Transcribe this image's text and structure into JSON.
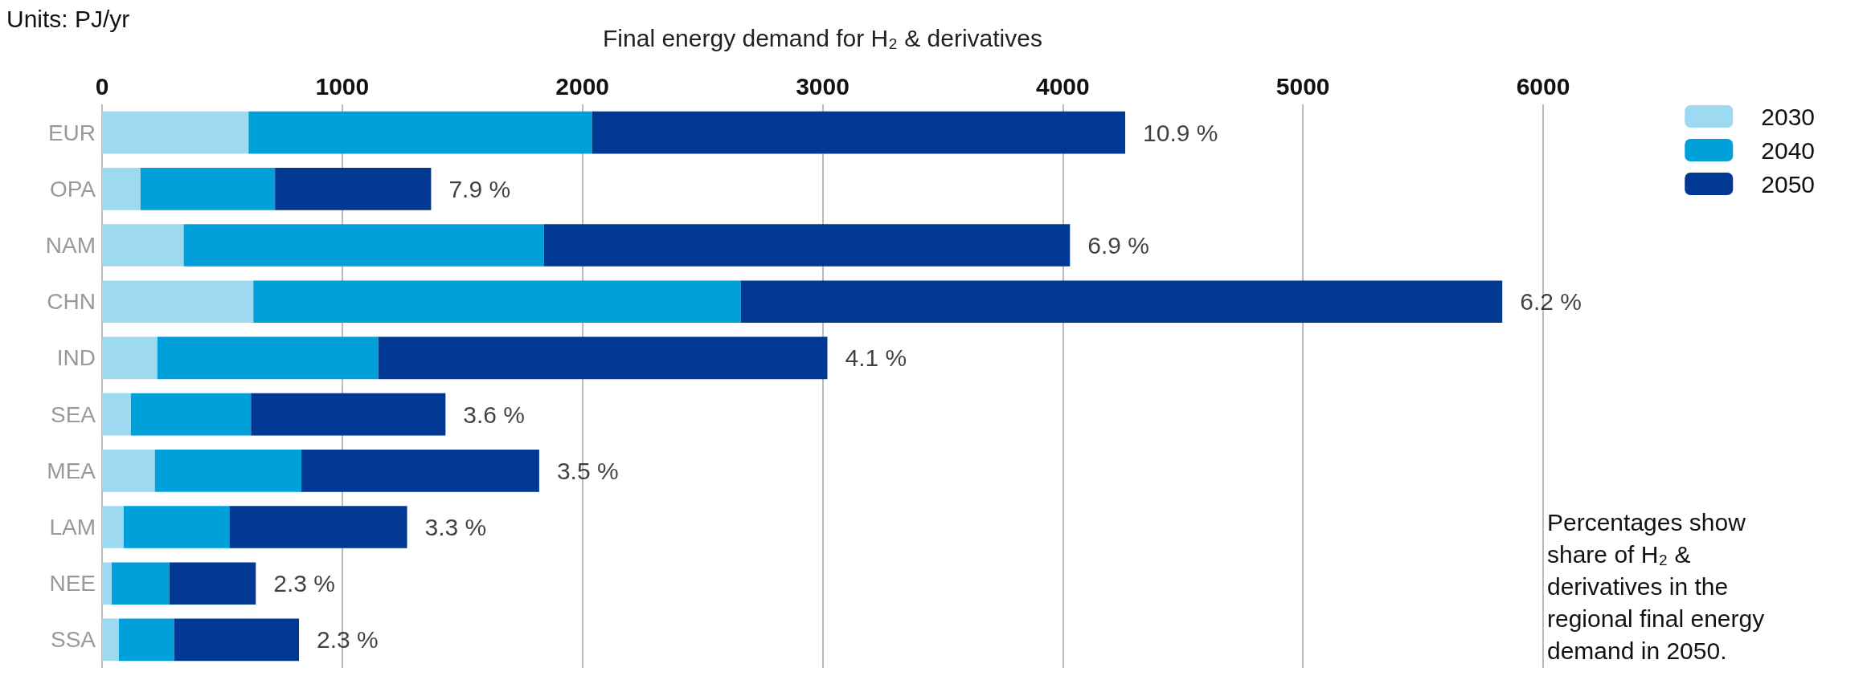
{
  "chart_data": {
    "type": "bar",
    "orientation": "horizontal",
    "stacked": true,
    "xlabel": "Final energy demand for H₂ & derivatives",
    "categories": [
      "EUR",
      "OPA",
      "NAM",
      "CHN",
      "IND",
      "SEA",
      "MEA",
      "LAM",
      "NEE",
      "SSA"
    ],
    "series": [
      {
        "name": "2030",
        "color": "#9dd9f0",
        "values": [
          610,
          160,
          340,
          630,
          230,
          120,
          220,
          90,
          40,
          70
        ]
      },
      {
        "name": "2040",
        "color": "#00a0da",
        "values": [
          1430,
          560,
          1500,
          2030,
          920,
          500,
          610,
          440,
          240,
          230
        ]
      },
      {
        "name": "2050",
        "color": "#003893",
        "values": [
          2220,
          650,
          2190,
          3170,
          1870,
          810,
          990,
          740,
          360,
          520
        ]
      }
    ],
    "xlim": [
      0,
      6000
    ],
    "xticks": [
      0,
      1000,
      2000,
      3000,
      4000,
      5000,
      6000
    ],
    "grid": "x",
    "legend": "top right",
    "annotations": [
      "Units: PJ/yr",
      "Percentages show share of H₂ & derivatives in the regional final energy demand in 2050.",
      {
        "text": "10.9 %",
        "x": 4260,
        "y": "EUR"
      },
      {
        "text": "7.9 %",
        "x": 1370,
        "y": "OPA"
      },
      {
        "text": "6.9 %",
        "x": 4030,
        "y": "NAM"
      },
      {
        "text": "6.2 %",
        "x": 5830,
        "y": "CHN"
      },
      {
        "text": "4.1 %",
        "x": 3020,
        "y": "IND"
      },
      {
        "text": "3.6 %",
        "x": 1430,
        "y": "SEA"
      },
      {
        "text": "3.5 %",
        "x": 1820,
        "y": "MEA"
      },
      {
        "text": "3.3 %",
        "x": 1270,
        "y": "LAM"
      },
      {
        "text": "2.3 %",
        "x": 640,
        "y": "NEE"
      },
      {
        "text": "2.3 %",
        "x": 820,
        "y": "SSA"
      }
    ]
  }
}
